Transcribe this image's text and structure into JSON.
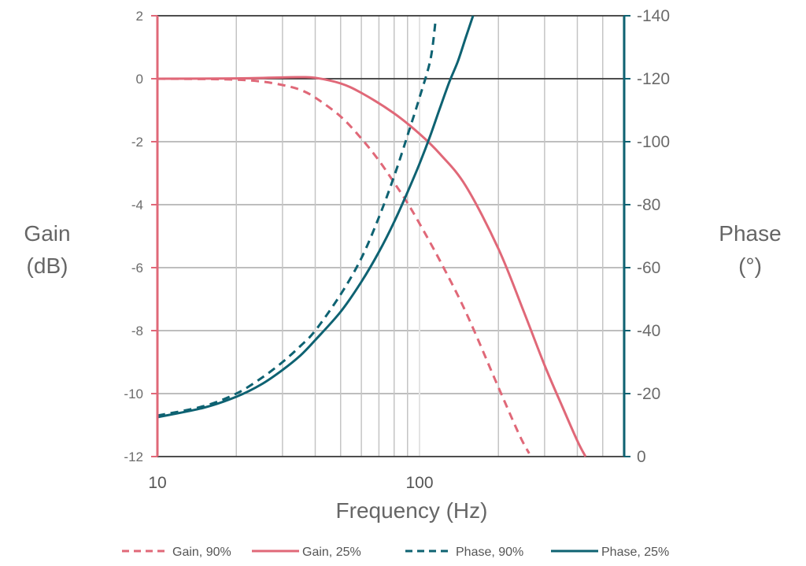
{
  "chart_data": {
    "type": "line",
    "x_scale": "log",
    "xlim": [
      10,
      600
    ],
    "x_ticks": [
      {
        "value": 10,
        "label": "10"
      },
      {
        "value": 100,
        "label": "100"
      }
    ],
    "xlabel": "Frequency (Hz)",
    "y_left": {
      "label_lines": [
        "Gain",
        "(dB)"
      ],
      "ylim": [
        -12,
        2
      ],
      "ticks": [
        "2",
        "0",
        "-2",
        "-4",
        "-6",
        "-8",
        "-10",
        "-12"
      ],
      "tick_values": [
        2,
        0,
        -2,
        -4,
        -6,
        -8,
        -10,
        -12
      ]
    },
    "y_right": {
      "label_lines": [
        "Phase",
        "(°)"
      ],
      "ylim": [
        0,
        -140
      ],
      "ticks": [
        "-140",
        "-120",
        "-100",
        "-80",
        "-60",
        "-40",
        "-20",
        "0"
      ],
      "tick_values": [
        -140,
        -120,
        -100,
        -80,
        -60,
        -40,
        -20,
        0
      ]
    },
    "grid": true,
    "legend_position": "bottom",
    "series": [
      {
        "name": "Gain, 90%",
        "axis": "left",
        "style": "dashed",
        "color": "#e06878",
        "x": [
          10,
          15,
          20,
          25,
          30,
          35,
          40,
          50,
          60,
          70,
          80,
          90,
          100,
          120,
          150,
          200,
          240,
          262
        ],
        "y": [
          0,
          -0.01,
          -0.03,
          -0.09,
          -0.2,
          -0.35,
          -0.6,
          -1.2,
          -1.9,
          -2.6,
          -3.3,
          -3.95,
          -4.6,
          -5.8,
          -7.4,
          -9.8,
          -11.3,
          -11.9
        ]
      },
      {
        "name": "Gain, 25%",
        "axis": "left",
        "style": "solid",
        "color": "#e06878",
        "x": [
          10,
          20,
          30,
          35,
          40,
          50,
          60,
          80,
          100,
          120,
          150,
          200,
          250,
          300,
          350,
          400,
          430
        ],
        "y": [
          0,
          0.01,
          0.04,
          0.05,
          0.03,
          -0.15,
          -0.45,
          -1.1,
          -1.75,
          -2.4,
          -3.4,
          -5.4,
          -7.4,
          -9.1,
          -10.4,
          -11.5,
          -12
        ]
      },
      {
        "name": "Phase, 90%",
        "axis": "right",
        "style": "dashed",
        "color": "#0e6272",
        "x": [
          10,
          15,
          20,
          25,
          30,
          35,
          40,
          50,
          60,
          70,
          80,
          90,
          100,
          110,
          115
        ],
        "y": [
          -13,
          -16,
          -20,
          -25,
          -30,
          -35,
          -40,
          -51.5,
          -63,
          -76,
          -89,
          -102,
          -114,
          -126,
          -138
        ]
      },
      {
        "name": "Phase, 25%",
        "axis": "right",
        "style": "solid",
        "color": "#0e6272",
        "x": [
          10,
          15,
          20,
          25,
          30,
          35,
          40,
          50,
          60,
          70,
          80,
          90,
          100,
          110,
          120,
          130,
          140,
          150,
          160
        ],
        "y": [
          -12.5,
          -15.5,
          -19,
          -23,
          -27.5,
          -32,
          -37,
          -46,
          -55.5,
          -65,
          -74.5,
          -84,
          -93,
          -102,
          -111,
          -119,
          -125.5,
          -133,
          -140
        ]
      }
    ]
  },
  "colors": {
    "gain_axis": "#e06878",
    "phase_axis": "#0e6272",
    "grid_major": "#a9a9a9",
    "grid_minor": "#c4c4c4",
    "zero_line": "#222222"
  }
}
